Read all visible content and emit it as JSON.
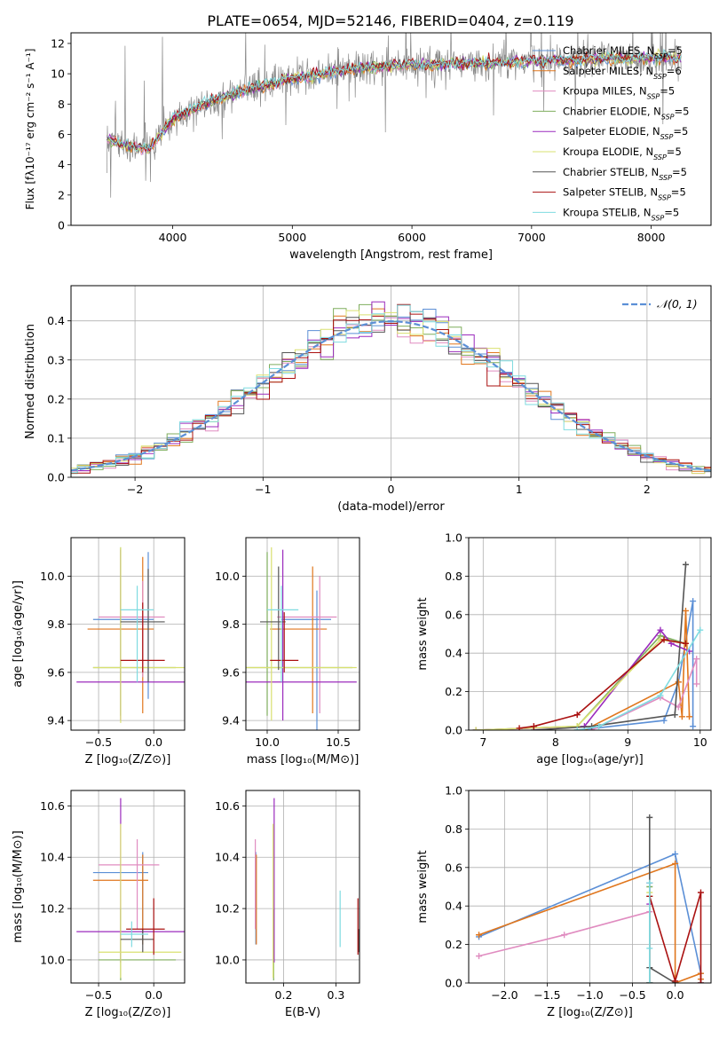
{
  "figure": {
    "title": "PLATE=0654, MJD=52146, FIBERID=0404, z=0.119"
  },
  "colors": {
    "Chabrier MILES": "#5b8fd6",
    "Salpeter MILES": "#e0761d",
    "Kroupa MILES": "#e08cc0",
    "Chabrier ELODIE": "#7fae5d",
    "Salpeter ELODIE": "#9b2bbd",
    "Kroupa ELODIE": "#d9e070",
    "Chabrier STELIB": "#555555",
    "Salpeter STELIB": "#aa1111",
    "Kroupa STELIB": "#7fdbe0",
    "data": "#8a8a8a",
    "normal": "#5b8fd6",
    "grid": "#b0b0b0"
  },
  "chart_data": [
    {
      "id": "spectrum",
      "type": "line",
      "xlabel": "wavelength [Angstrom, rest frame]",
      "ylabel": "Flux [fλ10⁻¹⁷ erg cm⁻² s⁻¹ A⁻¹]",
      "xlim": [
        3150,
        8500
      ],
      "ylim": [
        0,
        12.7
      ],
      "xticks": [
        4000,
        5000,
        6000,
        7000,
        8000
      ],
      "yticks": [
        0,
        2,
        4,
        6,
        8,
        10,
        12
      ],
      "grid": false,
      "legend_position": "right",
      "legend": [
        {
          "name": "Chabrier MILES",
          "nssp": "5"
        },
        {
          "name": "Salpeter MILES",
          "nssp": "6"
        },
        {
          "name": "Kroupa MILES",
          "nssp": "5"
        },
        {
          "name": "Chabrier ELODIE",
          "nssp": "5"
        },
        {
          "name": "Salpeter ELODIE",
          "nssp": "5"
        },
        {
          "name": "Kroupa ELODIE",
          "nssp": "5"
        },
        {
          "name": "Chabrier STELIB",
          "nssp": "5"
        },
        {
          "name": "Salpeter STELIB",
          "nssp": "5"
        },
        {
          "name": "Kroupa STELIB",
          "nssp": "5"
        }
      ],
      "continuum": {
        "x": [
          3450,
          3600,
          3800,
          3900,
          4000,
          4200,
          4400,
          4600,
          4800,
          5000,
          5200,
          5400,
          5600,
          5800,
          6000,
          6200,
          6400,
          6600,
          6800,
          7000,
          7200,
          7400,
          7600,
          7800,
          8000,
          8250
        ],
        "y": [
          5.7,
          5.3,
          5.0,
          6.0,
          7.0,
          7.8,
          8.4,
          8.9,
          9.3,
          9.7,
          9.9,
          10.2,
          10.4,
          10.5,
          10.6,
          10.6,
          10.7,
          10.7,
          10.8,
          10.8,
          10.9,
          10.9,
          11.0,
          11.0,
          11.0,
          11.1
        ]
      }
    },
    {
      "id": "residuals",
      "type": "line",
      "xlabel": "(data-model)/error",
      "ylabel": "Normed distribution",
      "xlim": [
        -2.5,
        2.5
      ],
      "ylim": [
        0,
        0.49
      ],
      "xticks": [
        -2,
        -1,
        0,
        1,
        2
      ],
      "yticks": [
        0.0,
        0.1,
        0.2,
        0.3,
        0.4
      ],
      "grid": true,
      "legend_position": "top-right",
      "legend_label": "𝒩(0, 1)",
      "bin_width": 0.1
    },
    {
      "id": "age-vs-Z",
      "type": "scatter",
      "xlabel": "Z [log₁₀(Z/Z⊙)]",
      "ylabel": "age  [log₁₀(age/yr)]",
      "xlim": [
        -0.75,
        0.28
      ],
      "ylim": [
        9.36,
        10.16
      ],
      "xticks": [
        -0.5,
        0.0
      ],
      "yticks": [
        9.4,
        9.6,
        9.8,
        10.0
      ],
      "grid": true,
      "points": [
        {
          "series": "Chabrier MILES",
          "x": -0.05,
          "y": 9.82,
          "xerr": [
            0.5,
            0.05
          ],
          "yerr": [
            0.33,
            0.28
          ]
        },
        {
          "series": "Salpeter MILES",
          "x": -0.1,
          "y": 9.78,
          "xerr": [
            0.5,
            0.1
          ],
          "yerr": [
            0.35,
            0.3
          ]
        },
        {
          "series": "Kroupa MILES",
          "x": -0.1,
          "y": 9.83,
          "xerr": [
            0.4,
            0.2
          ],
          "yerr": [
            0.25,
            0.15
          ]
        },
        {
          "series": "Chabrier ELODIE",
          "x": -0.3,
          "y": 9.62,
          "xerr": [
            0.25,
            0.5
          ],
          "yerr": [
            0.2,
            0.5
          ]
        },
        {
          "series": "Salpeter ELODIE",
          "x": -0.3,
          "y": 9.56,
          "xerr": [
            0.4,
            0.58
          ],
          "yerr": [
            0.16,
            0.55
          ]
        },
        {
          "series": "Kroupa ELODIE",
          "x": -0.3,
          "y": 9.62,
          "xerr": [
            0.25,
            0.58
          ],
          "yerr": [
            0.23,
            0.5
          ]
        },
        {
          "series": "Chabrier STELIB",
          "x": -0.05,
          "y": 9.81,
          "xerr": [
            0.25,
            0.15
          ],
          "yerr": [
            0.25,
            0.22
          ]
        },
        {
          "series": "Salpeter STELIB",
          "x": -0.1,
          "y": 9.65,
          "xerr": [
            0.2,
            0.2
          ],
          "yerr": [
            0.05,
            0.24
          ]
        },
        {
          "series": "Kroupa STELIB",
          "x": -0.15,
          "y": 9.86,
          "xerr": [
            0.15,
            0.15
          ],
          "yerr": [
            0.3,
            0.1
          ]
        }
      ]
    },
    {
      "id": "age-vs-mass",
      "type": "scatter",
      "xlabel": "mass [log₁₀(M/M⊙)]",
      "ylabel": "",
      "xlim": [
        9.85,
        10.65
      ],
      "ylim": [
        9.36,
        10.16
      ],
      "xticks": [
        10.0,
        10.5
      ],
      "yticks": [
        9.4,
        9.6,
        9.8,
        10.0
      ],
      "grid": true,
      "points": [
        {
          "series": "Chabrier MILES",
          "x": 10.35,
          "y": 9.82,
          "xerr": [
            0.25,
            0.1
          ],
          "yerr": [
            0.48,
            0.12
          ]
        },
        {
          "series": "Salpeter MILES",
          "x": 10.32,
          "y": 9.78,
          "xerr": [
            0.3,
            0.1
          ],
          "yerr": [
            0.35,
            0.26
          ]
        },
        {
          "series": "Kroupa MILES",
          "x": 10.37,
          "y": 9.83,
          "xerr": [
            0.3,
            0.12
          ],
          "yerr": [
            0.4,
            0.17
          ]
        },
        {
          "series": "Chabrier ELODIE",
          "x": 10.0,
          "y": 9.62,
          "xerr": [
            0.15,
            0.6
          ],
          "yerr": [
            0.2,
            0.48
          ]
        },
        {
          "series": "Salpeter ELODIE",
          "x": 10.11,
          "y": 9.56,
          "xerr": [
            0.3,
            0.52
          ],
          "yerr": [
            0.16,
            0.55
          ]
        },
        {
          "series": "Kroupa ELODIE",
          "x": 10.03,
          "y": 9.62,
          "xerr": [
            0.2,
            0.6
          ],
          "yerr": [
            0.22,
            0.5
          ]
        },
        {
          "series": "Chabrier STELIB",
          "x": 10.08,
          "y": 9.81,
          "xerr": [
            0.13,
            0.05
          ],
          "yerr": [
            0.2,
            0.23
          ]
        },
        {
          "series": "Salpeter STELIB",
          "x": 10.12,
          "y": 9.65,
          "xerr": [
            0.1,
            0.1
          ],
          "yerr": [
            0.05,
            0.2
          ]
        },
        {
          "series": "Kroupa STELIB",
          "x": 10.1,
          "y": 9.86,
          "xerr": [
            0.1,
            0.12
          ],
          "yerr": [
            0.3,
            0.1
          ]
        }
      ]
    },
    {
      "id": "weight-vs-age",
      "type": "line",
      "xlabel": "age  [log₁₀(age/yr)]",
      "ylabel": "mass weight",
      "xlim": [
        6.8,
        10.15
      ],
      "ylim": [
        0,
        1.0
      ],
      "xticks": [
        7,
        8,
        9,
        10
      ],
      "yticks": [
        0.0,
        0.2,
        0.4,
        0.6,
        0.8,
        1.0
      ],
      "grid": true,
      "series": [
        {
          "name": "Chabrier MILES",
          "x": [
            8.3,
            9.5,
            9.7,
            9.9,
            9.9
          ],
          "y": [
            0.0,
            0.05,
            0.25,
            0.67,
            0.02
          ]
        },
        {
          "name": "Salpeter MILES",
          "x": [
            8.4,
            9.7,
            9.75,
            9.8,
            9.85
          ],
          "y": [
            0.0,
            0.25,
            0.07,
            0.62,
            0.07
          ]
        },
        {
          "name": "Kroupa MILES",
          "x": [
            8.5,
            9.45,
            9.7,
            9.95,
            9.95
          ],
          "y": [
            0.0,
            0.17,
            0.12,
            0.37,
            0.24
          ]
        },
        {
          "name": "Chabrier ELODIE",
          "x": [
            6.9,
            8.3,
            9.45,
            9.8
          ],
          "y": [
            0.0,
            0.02,
            0.49,
            0.45
          ]
        },
        {
          "name": "Salpeter ELODIE",
          "x": [
            6.9,
            8.4,
            9.45,
            9.6,
            9.85
          ],
          "y": [
            0.0,
            0.02,
            0.52,
            0.45,
            0.41
          ]
        },
        {
          "name": "Kroupa ELODIE",
          "x": [
            6.9,
            8.3,
            9.45,
            9.8
          ],
          "y": [
            0.0,
            0.02,
            0.47,
            0.45
          ]
        },
        {
          "name": "Chabrier STELIB",
          "x": [
            7.7,
            8.5,
            9.65,
            9.8
          ],
          "y": [
            0.0,
            0.02,
            0.08,
            0.86
          ]
        },
        {
          "name": "Salpeter STELIB",
          "x": [
            7.5,
            7.7,
            8.3,
            9.5,
            9.8
          ],
          "y": [
            0.01,
            0.02,
            0.08,
            0.47,
            0.45
          ]
        },
        {
          "name": "Kroupa STELIB",
          "x": [
            8.3,
            8.6,
            9.45,
            10.0
          ],
          "y": [
            0.0,
            0.02,
            0.18,
            0.52
          ]
        }
      ]
    },
    {
      "id": "mass-vs-Z",
      "type": "scatter",
      "xlabel": "Z [log₁₀(Z/Z⊙)]",
      "ylabel": "mass [log₁₀(M/M⊙)]",
      "xlim": [
        -0.75,
        0.28
      ],
      "ylim": [
        9.91,
        10.66
      ],
      "xticks": [
        -0.5,
        0.0
      ],
      "yticks": [
        10.0,
        10.2,
        10.4,
        10.6
      ],
      "grid": true,
      "points": [
        {
          "series": "Chabrier MILES",
          "x": -0.1,
          "y": 10.34,
          "xerr": [
            0.45,
            0.05
          ],
          "yerr": [
            0.28,
            0.08
          ]
        },
        {
          "series": "Salpeter MILES",
          "x": -0.1,
          "y": 10.31,
          "xerr": [
            0.45,
            0.05
          ],
          "yerr": [
            0.25,
            0.1
          ]
        },
        {
          "series": "Kroupa MILES",
          "x": -0.15,
          "y": 10.37,
          "xerr": [
            0.35,
            0.2
          ],
          "yerr": [
            0.25,
            0.1
          ]
        },
        {
          "series": "Chabrier ELODIE",
          "x": -0.3,
          "y": 10.0,
          "xerr": [
            0.2,
            0.5
          ],
          "yerr": [
            0.08,
            0.2
          ]
        },
        {
          "series": "Salpeter ELODIE",
          "x": -0.3,
          "y": 10.11,
          "xerr": [
            0.4,
            0.6
          ],
          "yerr": [
            0.12,
            0.52
          ]
        },
        {
          "series": "Kroupa ELODIE",
          "x": -0.3,
          "y": 10.03,
          "xerr": [
            0.2,
            0.55
          ],
          "yerr": [
            0.1,
            0.5
          ]
        },
        {
          "series": "Chabrier STELIB",
          "x": -0.1,
          "y": 10.08,
          "xerr": [
            0.2,
            0.1
          ],
          "yerr": [
            0.05,
            0.04
          ]
        },
        {
          "series": "Salpeter STELIB",
          "x": 0.0,
          "y": 10.12,
          "xerr": [
            0.25,
            0.1
          ],
          "yerr": [
            0.1,
            0.12
          ]
        },
        {
          "series": "Kroupa STELIB",
          "x": -0.2,
          "y": 10.1,
          "xerr": [
            0.1,
            0.15
          ],
          "yerr": [
            0.05,
            0.05
          ]
        }
      ]
    },
    {
      "id": "mass-vs-EBV",
      "type": "scatter",
      "xlabel": "E(B-V)",
      "ylabel": "",
      "xlim": [
        0.128,
        0.345
      ],
      "ylim": [
        9.91,
        10.66
      ],
      "xticks": [
        0.2,
        0.3
      ],
      "yticks": [
        10.0,
        10.2,
        10.4,
        10.6
      ],
      "grid": true,
      "points": [
        {
          "series": "Chabrier MILES",
          "x": 0.147,
          "y": 10.34,
          "yerr": [
            0.28,
            0.08
          ]
        },
        {
          "series": "Salpeter MILES",
          "x": 0.148,
          "y": 10.31,
          "yerr": [
            0.25,
            0.1
          ]
        },
        {
          "series": "Kroupa MILES",
          "x": 0.146,
          "y": 10.37,
          "yerr": [
            0.25,
            0.1
          ]
        },
        {
          "series": "Chabrier ELODIE",
          "x": 0.181,
          "y": 10.0,
          "yerr": [
            0.08,
            0.2
          ]
        },
        {
          "series": "Salpeter ELODIE",
          "x": 0.182,
          "y": 10.11,
          "yerr": [
            0.12,
            0.52
          ]
        },
        {
          "series": "Kroupa ELODIE",
          "x": 0.18,
          "y": 10.03,
          "yerr": [
            0.1,
            0.5
          ]
        },
        {
          "series": "Chabrier STELIB",
          "x": 0.343,
          "y": 10.08,
          "yerr": [
            0.05,
            0.04
          ]
        },
        {
          "series": "Salpeter STELIB",
          "x": 0.342,
          "y": 10.12,
          "yerr": [
            0.1,
            0.12
          ]
        },
        {
          "series": "Kroupa STELIB",
          "x": 0.308,
          "y": 10.1,
          "yerr": [
            0.05,
            0.17
          ]
        }
      ]
    },
    {
      "id": "weight-vs-Z",
      "type": "line",
      "xlabel": "Z [log₁₀(Z/Z⊙)]",
      "ylabel": "mass weight",
      "xlim": [
        -2.42,
        0.42
      ],
      "ylim": [
        0,
        1.0
      ],
      "xticks": [
        -2.0,
        -1.5,
        -1.0,
        -0.5,
        0.0
      ],
      "yticks": [
        0.0,
        0.2,
        0.4,
        0.6,
        0.8,
        1.0
      ],
      "grid": true,
      "series": [
        {
          "name": "Chabrier MILES",
          "x": [
            -2.3,
            0.0,
            0.3,
            0.3
          ],
          "y": [
            0.24,
            0.67,
            0.05,
            0.0
          ]
        },
        {
          "name": "Salpeter MILES",
          "x": [
            -2.3,
            0.0,
            0.0,
            0.3,
            0.3
          ],
          "y": [
            0.25,
            0.62,
            0.0,
            0.05,
            0.02
          ]
        },
        {
          "name": "Kroupa MILES",
          "x": [
            -2.3,
            -1.3,
            -0.3,
            -0.3
          ],
          "y": [
            0.14,
            0.25,
            0.37,
            0.0
          ]
        },
        {
          "name": "Chabrier ELODIE",
          "x": [
            -0.3,
            -0.3,
            -0.3
          ],
          "y": [
            0.0,
            0.45,
            0.5
          ]
        },
        {
          "name": "Salpeter ELODIE",
          "x": [
            -0.3,
            -0.3,
            -0.3
          ],
          "y": [
            0.0,
            0.41,
            0.52
          ]
        },
        {
          "name": "Kroupa ELODIE",
          "x": [
            -0.3,
            -0.3,
            -0.3
          ],
          "y": [
            0.0,
            0.45,
            0.47
          ]
        },
        {
          "name": "Chabrier STELIB",
          "x": [
            -0.3,
            -0.3,
            -0.3,
            0.0
          ],
          "y": [
            0.86,
            0.0,
            0.08,
            0.0
          ]
        },
        {
          "name": "Salpeter STELIB",
          "x": [
            -0.3,
            0.0,
            0.3,
            0.3
          ],
          "y": [
            0.45,
            0.01,
            0.47,
            0.0
          ]
        },
        {
          "name": "Kroupa STELIB",
          "x": [
            -0.3,
            -0.3,
            -0.3
          ],
          "y": [
            0.0,
            0.18,
            0.52
          ]
        }
      ]
    }
  ]
}
